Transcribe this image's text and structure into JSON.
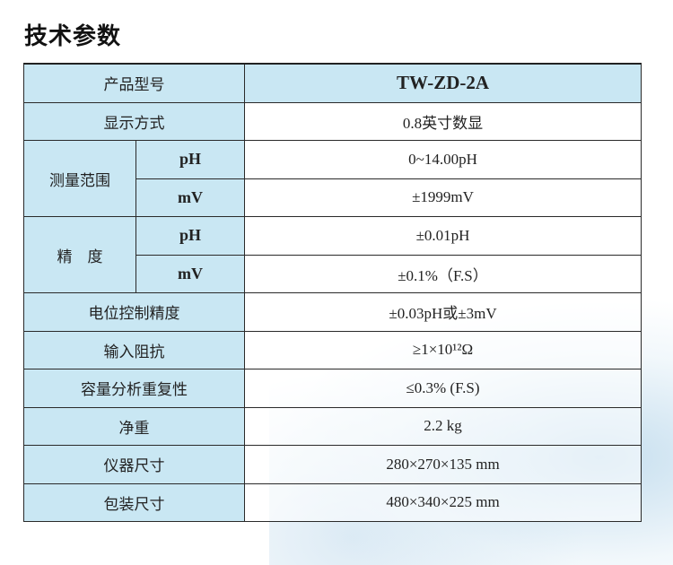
{
  "title": "技术参数",
  "rows": [
    {
      "label": "产品型号",
      "value": "TW-ZD-2A"
    },
    {
      "label": "显示方式",
      "value": "0.8英寸数显"
    },
    {
      "label": "测量范围",
      "subs": [
        {
          "label": "pH",
          "value": "0~14.00pH"
        },
        {
          "label": "mV",
          "value": "±1999mV"
        }
      ]
    },
    {
      "label": "精　度",
      "subs": [
        {
          "label": "pH",
          "value": "±0.01pH"
        },
        {
          "label": "mV",
          "value": "±0.1%（F.S）"
        }
      ]
    },
    {
      "label": "电位控制精度",
      "value": "±0.03pH或±3mV"
    },
    {
      "label": "输入阻抗",
      "value": "≥1×10¹²Ω"
    },
    {
      "label": "容量分析重复性",
      "value": "≤0.3% (F.S)"
    },
    {
      "label": "净重",
      "value": "2.2 kg"
    },
    {
      "label": "仪器尺寸",
      "value": "280×270×135 mm"
    },
    {
      "label": "包装尺寸",
      "value": "480×340×225 mm"
    }
  ]
}
